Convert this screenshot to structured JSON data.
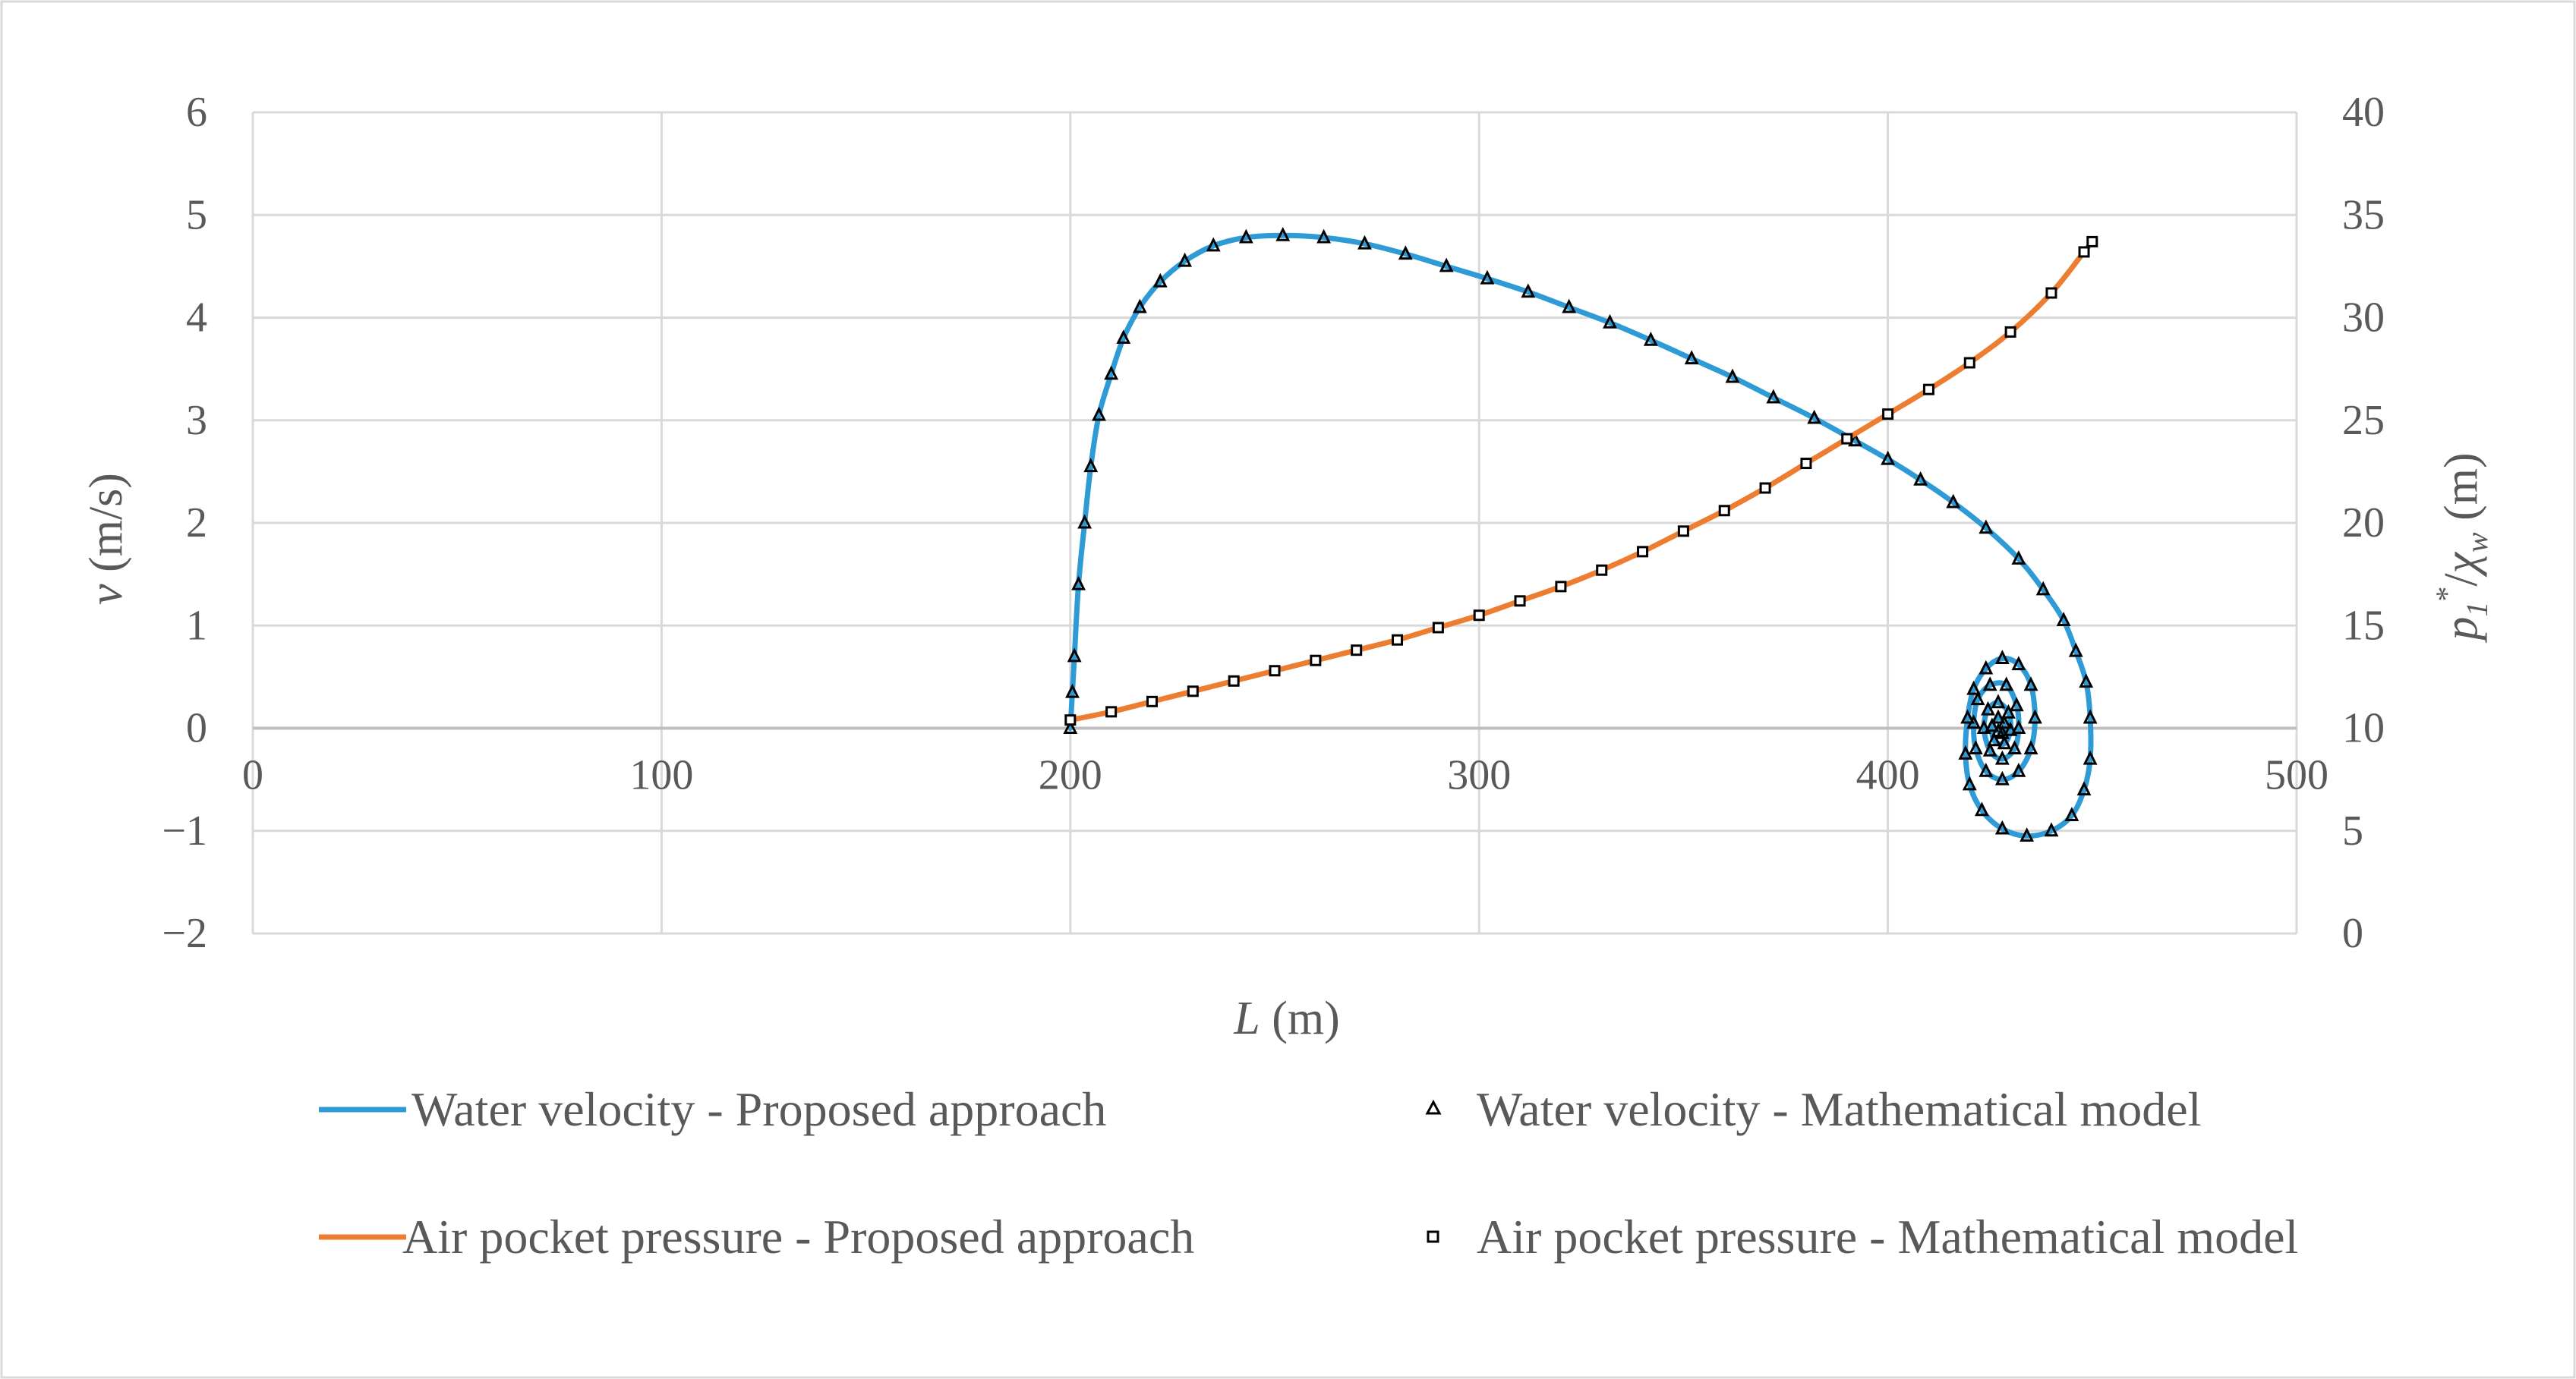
{
  "chart_data": {
    "type": "line",
    "title": "",
    "xlabel": {
      "symbol": "L",
      "unit": "(m)"
    },
    "ylabel_left": {
      "symbol": "v",
      "unit": "(m/s)"
    },
    "ylabel_right": {
      "base": "p",
      "sub1": "1",
      "sup": "*",
      "slash": "/",
      "chi": "χ",
      "subw": "w",
      "unit": "(m)"
    },
    "xlim": [
      0,
      500
    ],
    "ylim_left": [
      -2,
      6
    ],
    "ylim_right": [
      0,
      40
    ],
    "grid": true,
    "x_ticks": [
      "0",
      "100",
      "200",
      "300",
      "400",
      "500"
    ],
    "y_left_ticks": [
      "6",
      "5",
      "4",
      "3",
      "2",
      "1",
      "0",
      "−1",
      "−2"
    ],
    "y_right_ticks": [
      "40",
      "35",
      "30",
      "25",
      "20",
      "15",
      "10",
      "5",
      "0"
    ],
    "legend_position": "bottom",
    "legend": [
      {
        "label": "Water velocity - Proposed approach",
        "marker": "line",
        "color": "#2E9BD6"
      },
      {
        "label": "Water velocity - Mathematical model",
        "marker": "triangle",
        "color": "#000000"
      },
      {
        "label": "Air pocket pressure - Proposed approach",
        "marker": "line",
        "color": "#ED7D31"
      },
      {
        "label": "Air pocket pressure - Mathematical model",
        "marker": "square",
        "color": "#000000"
      }
    ],
    "series": [
      {
        "name": "Water velocity - Proposed approach",
        "axis": "left",
        "color": "#2E9BD6",
        "points": [
          [
            200,
            0
          ],
          [
            200.5,
            0.35
          ],
          [
            201,
            0.7
          ],
          [
            202,
            1.4
          ],
          [
            203.5,
            2.0
          ],
          [
            205,
            2.55
          ],
          [
            207,
            3.05
          ],
          [
            210,
            3.45
          ],
          [
            213,
            3.8
          ],
          [
            217,
            4.1
          ],
          [
            222,
            4.35
          ],
          [
            228,
            4.55
          ],
          [
            235,
            4.7
          ],
          [
            243,
            4.78
          ],
          [
            252,
            4.8
          ],
          [
            262,
            4.78
          ],
          [
            272,
            4.72
          ],
          [
            282,
            4.62
          ],
          [
            292,
            4.5
          ],
          [
            302,
            4.38
          ],
          [
            312,
            4.25
          ],
          [
            322,
            4.1
          ],
          [
            332,
            3.95
          ],
          [
            342,
            3.78
          ],
          [
            352,
            3.6
          ],
          [
            362,
            3.42
          ],
          [
            372,
            3.22
          ],
          [
            382,
            3.02
          ],
          [
            392,
            2.8
          ],
          [
            400,
            2.62
          ],
          [
            408,
            2.42
          ],
          [
            416,
            2.2
          ],
          [
            424,
            1.95
          ],
          [
            432,
            1.65
          ],
          [
            438,
            1.35
          ],
          [
            443,
            1.05
          ],
          [
            446,
            0.75
          ],
          [
            448.5,
            0.45
          ],
          [
            449.5,
            0.1
          ],
          [
            449.5,
            -0.3
          ],
          [
            448,
            -0.6
          ],
          [
            445,
            -0.85
          ],
          [
            440,
            -1.0
          ],
          [
            434,
            -1.05
          ],
          [
            428,
            -0.98
          ],
          [
            423,
            -0.8
          ],
          [
            420,
            -0.55
          ],
          [
            419,
            -0.25
          ],
          [
            419.5,
            0.1
          ],
          [
            421,
            0.38
          ],
          [
            424,
            0.58
          ],
          [
            428,
            0.68
          ],
          [
            432,
            0.62
          ],
          [
            435,
            0.42
          ],
          [
            436,
            0.1
          ],
          [
            435,
            -0.2
          ],
          [
            432,
            -0.42
          ],
          [
            428,
            -0.5
          ],
          [
            424,
            -0.42
          ],
          [
            421.5,
            -0.2
          ],
          [
            421,
            0.05
          ],
          [
            422,
            0.28
          ],
          [
            425,
            0.42
          ],
          [
            429,
            0.42
          ],
          [
            431.5,
            0.22
          ],
          [
            432,
            0
          ],
          [
            431,
            -0.2
          ],
          [
            428,
            -0.3
          ],
          [
            425,
            -0.22
          ],
          [
            423.5,
            0
          ],
          [
            424.5,
            0.18
          ],
          [
            427,
            0.25
          ],
          [
            429.5,
            0.15
          ],
          [
            430,
            -0.02
          ],
          [
            428.5,
            -0.15
          ],
          [
            426,
            -0.12
          ],
          [
            425.5,
            0.02
          ],
          [
            427,
            0.1
          ],
          [
            428.5,
            0.05
          ],
          [
            428,
            -0.05
          ],
          [
            427,
            -0.03
          ]
        ]
      },
      {
        "name": "Water velocity - Mathematical model",
        "axis": "left",
        "marker": "triangle",
        "color": "#000000",
        "points": [
          [
            200,
            0
          ],
          [
            200.5,
            0.35
          ],
          [
            201,
            0.7
          ],
          [
            202,
            1.4
          ],
          [
            203.5,
            2.0
          ],
          [
            205,
            2.55
          ],
          [
            207,
            3.05
          ],
          [
            210,
            3.45
          ],
          [
            213,
            3.8
          ],
          [
            217,
            4.1
          ],
          [
            222,
            4.35
          ],
          [
            228,
            4.55
          ],
          [
            235,
            4.7
          ],
          [
            243,
            4.78
          ],
          [
            252,
            4.8
          ],
          [
            262,
            4.78
          ],
          [
            272,
            4.72
          ],
          [
            282,
            4.62
          ],
          [
            292,
            4.5
          ],
          [
            302,
            4.38
          ],
          [
            312,
            4.25
          ],
          [
            322,
            4.1
          ],
          [
            332,
            3.95
          ],
          [
            342,
            3.78
          ],
          [
            352,
            3.6
          ],
          [
            362,
            3.42
          ],
          [
            372,
            3.22
          ],
          [
            382,
            3.02
          ],
          [
            392,
            2.8
          ],
          [
            400,
            2.62
          ],
          [
            408,
            2.42
          ],
          [
            416,
            2.2
          ],
          [
            424,
            1.95
          ],
          [
            432,
            1.65
          ],
          [
            438,
            1.35
          ],
          [
            443,
            1.05
          ],
          [
            446,
            0.75
          ],
          [
            448.5,
            0.45
          ],
          [
            449.5,
            0.1
          ],
          [
            449.5,
            -0.3
          ],
          [
            448,
            -0.6
          ],
          [
            445,
            -0.85
          ],
          [
            440,
            -1.0
          ],
          [
            434,
            -1.05
          ],
          [
            428,
            -0.98
          ],
          [
            423,
            -0.8
          ],
          [
            420,
            -0.55
          ],
          [
            419,
            -0.25
          ],
          [
            419.5,
            0.1
          ],
          [
            421,
            0.38
          ],
          [
            424,
            0.58
          ],
          [
            428,
            0.68
          ],
          [
            432,
            0.62
          ],
          [
            435,
            0.42
          ],
          [
            436,
            0.1
          ],
          [
            435,
            -0.2
          ],
          [
            432,
            -0.42
          ],
          [
            428,
            -0.5
          ],
          [
            424,
            -0.42
          ],
          [
            421.5,
            -0.2
          ],
          [
            421,
            0.05
          ],
          [
            422,
            0.28
          ],
          [
            425,
            0.42
          ],
          [
            429,
            0.42
          ],
          [
            431.5,
            0.22
          ],
          [
            432,
            0
          ],
          [
            431,
            -0.2
          ],
          [
            428,
            -0.3
          ],
          [
            425,
            -0.22
          ],
          [
            423.5,
            0
          ],
          [
            424.5,
            0.18
          ],
          [
            427,
            0.25
          ],
          [
            429.5,
            0.15
          ],
          [
            430,
            -0.02
          ],
          [
            428.5,
            -0.15
          ],
          [
            426,
            -0.12
          ],
          [
            425.5,
            0.02
          ],
          [
            427,
            0.1
          ],
          [
            428.5,
            0.05
          ],
          [
            428,
            -0.05
          ],
          [
            427,
            -0.03
          ]
        ]
      },
      {
        "name": "Air pocket pressure - Proposed approach",
        "axis": "right",
        "color": "#ED7D31",
        "points": [
          [
            200,
            10.4
          ],
          [
            210,
            10.8
          ],
          [
            220,
            11.3
          ],
          [
            230,
            11.8
          ],
          [
            240,
            12.3
          ],
          [
            250,
            12.8
          ],
          [
            260,
            13.3
          ],
          [
            270,
            13.8
          ],
          [
            280,
            14.3
          ],
          [
            290,
            14.9
          ],
          [
            300,
            15.5
          ],
          [
            310,
            16.2
          ],
          [
            320,
            16.9
          ],
          [
            330,
            17.7
          ],
          [
            340,
            18.6
          ],
          [
            350,
            19.6
          ],
          [
            360,
            20.6
          ],
          [
            370,
            21.7
          ],
          [
            380,
            22.9
          ],
          [
            390,
            24.1
          ],
          [
            400,
            25.3
          ],
          [
            410,
            26.5
          ],
          [
            420,
            27.8
          ],
          [
            430,
            29.3
          ],
          [
            440,
            31.2
          ],
          [
            448,
            33.2
          ],
          [
            450,
            33.7
          ]
        ]
      },
      {
        "name": "Air pocket pressure - Mathematical model",
        "axis": "right",
        "marker": "square",
        "color": "#000000",
        "points": [
          [
            200,
            10.4
          ],
          [
            210,
            10.8
          ],
          [
            220,
            11.3
          ],
          [
            230,
            11.8
          ],
          [
            240,
            12.3
          ],
          [
            250,
            12.8
          ],
          [
            260,
            13.3
          ],
          [
            270,
            13.8
          ],
          [
            280,
            14.3
          ],
          [
            290,
            14.9
          ],
          [
            300,
            15.5
          ],
          [
            310,
            16.2
          ],
          [
            320,
            16.9
          ],
          [
            330,
            17.7
          ],
          [
            340,
            18.6
          ],
          [
            350,
            19.6
          ],
          [
            360,
            20.6
          ],
          [
            370,
            21.7
          ],
          [
            380,
            22.9
          ],
          [
            390,
            24.1
          ],
          [
            400,
            25.3
          ],
          [
            410,
            26.5
          ],
          [
            420,
            27.8
          ],
          [
            430,
            29.3
          ],
          [
            440,
            31.2
          ],
          [
            448,
            33.2
          ],
          [
            450,
            33.7
          ]
        ]
      }
    ]
  }
}
